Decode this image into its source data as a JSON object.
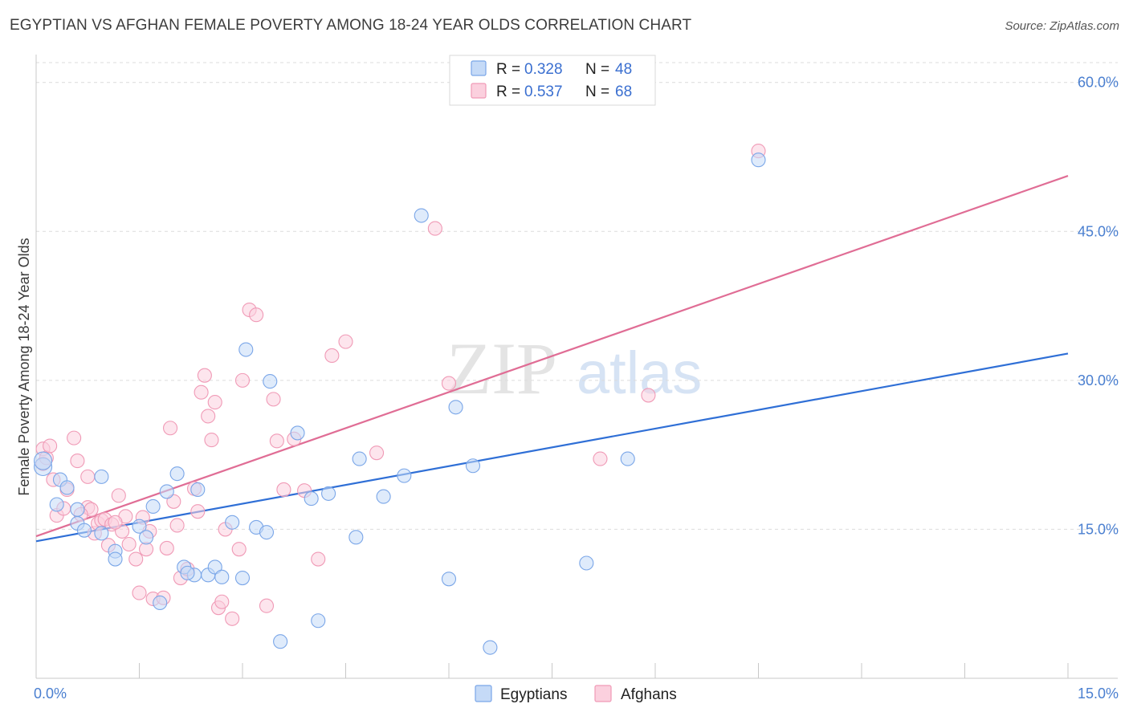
{
  "title": "EGYPTIAN VS AFGHAN FEMALE POVERTY AMONG 18-24 YEAR OLDS CORRELATION CHART",
  "source": "Source: ZipAtlas.com",
  "watermark": {
    "zip": "ZIP",
    "atlas": "atlas"
  },
  "legend": {
    "rows": [
      {
        "r_label": "R =",
        "r_value": "0.328",
        "n_label": "N =",
        "n_value": "48"
      },
      {
        "r_label": "R =",
        "r_value": "0.537",
        "n_label": "N =",
        "n_value": "68"
      }
    ]
  },
  "bottom_legend": [
    "Egyptians",
    "Afghans"
  ],
  "chart_data": {
    "type": "scatter",
    "title": "EGYPTIAN VS AFGHAN FEMALE POVERTY AMONG 18-24 YEAR OLDS CORRELATION CHART",
    "xlabel": "",
    "ylabel": "Female Poverty Among 18-24 Year Olds",
    "xlim": [
      0,
      15
    ],
    "ylim": [
      0,
      62
    ],
    "x_tick_labels": [
      "0.0%",
      "15.0%"
    ],
    "y_ticks": [
      15,
      30,
      45,
      60
    ],
    "y_tick_labels": [
      "15.0%",
      "30.0%",
      "45.0%",
      "60.0%"
    ],
    "grid": true,
    "legend_position": "top-center",
    "colors": {
      "egyptians": "#6d9fe6",
      "afghans": "#f08fb0",
      "egyptians_line": "#2f6fd6",
      "afghans_line": "#e06d95"
    },
    "series": [
      {
        "name": "Egyptians",
        "R": 0.328,
        "N": 48,
        "trend": [
          [
            0,
            13.8
          ],
          [
            15,
            32.7
          ]
        ],
        "points": [
          [
            0.1,
            21.3
          ],
          [
            0.1,
            21.9
          ],
          [
            0.35,
            20.0
          ],
          [
            0.45,
            19.2
          ],
          [
            0.3,
            17.5
          ],
          [
            0.6,
            17.0
          ],
          [
            0.95,
            20.3
          ],
          [
            0.6,
            15.6
          ],
          [
            0.7,
            14.9
          ],
          [
            0.95,
            14.6
          ],
          [
            1.15,
            12.8
          ],
          [
            1.15,
            12.0
          ],
          [
            1.5,
            15.3
          ],
          [
            1.6,
            14.2
          ],
          [
            1.7,
            17.3
          ],
          [
            1.9,
            18.8
          ],
          [
            2.05,
            20.6
          ],
          [
            1.8,
            7.6
          ],
          [
            2.15,
            11.2
          ],
          [
            2.3,
            10.4
          ],
          [
            2.35,
            19.0
          ],
          [
            2.5,
            10.4
          ],
          [
            2.6,
            11.2
          ],
          [
            2.7,
            10.2
          ],
          [
            2.85,
            15.7
          ],
          [
            3.0,
            10.1
          ],
          [
            3.05,
            33.1
          ],
          [
            3.2,
            15.2
          ],
          [
            3.35,
            14.7
          ],
          [
            3.4,
            29.9
          ],
          [
            3.55,
            3.7
          ],
          [
            3.8,
            24.7
          ],
          [
            4.0,
            18.1
          ],
          [
            4.1,
            5.8
          ],
          [
            4.25,
            18.6
          ],
          [
            4.65,
            14.2
          ],
          [
            4.7,
            22.1
          ],
          [
            5.05,
            18.3
          ],
          [
            5.35,
            20.4
          ],
          [
            5.6,
            46.6
          ],
          [
            6.0,
            10.0
          ],
          [
            6.1,
            27.3
          ],
          [
            6.35,
            21.4
          ],
          [
            6.6,
            3.1
          ],
          [
            8.0,
            11.6
          ],
          [
            8.6,
            22.1
          ],
          [
            10.5,
            52.2
          ],
          [
            2.2,
            10.6
          ]
        ]
      },
      {
        "name": "Afghans",
        "R": 0.537,
        "N": 68,
        "trend": [
          [
            0,
            14.3
          ],
          [
            15,
            50.6
          ]
        ],
        "points": [
          [
            0.1,
            23.1
          ],
          [
            0.1,
            21.6
          ],
          [
            0.15,
            22.2
          ],
          [
            0.25,
            20.0
          ],
          [
            0.3,
            16.4
          ],
          [
            0.45,
            19.0
          ],
          [
            0.55,
            24.2
          ],
          [
            0.6,
            21.9
          ],
          [
            0.75,
            20.3
          ],
          [
            0.75,
            17.2
          ],
          [
            0.8,
            17.0
          ],
          [
            0.85,
            14.6
          ],
          [
            0.9,
            15.6
          ],
          [
            0.95,
            15.9
          ],
          [
            1.0,
            16.0
          ],
          [
            1.1,
            15.5
          ],
          [
            1.2,
            18.4
          ],
          [
            1.25,
            14.8
          ],
          [
            1.3,
            16.3
          ],
          [
            1.35,
            13.5
          ],
          [
            1.45,
            12.0
          ],
          [
            1.5,
            8.6
          ],
          [
            1.6,
            13.0
          ],
          [
            1.7,
            8.0
          ],
          [
            1.85,
            8.1
          ],
          [
            1.9,
            13.1
          ],
          [
            1.95,
            25.2
          ],
          [
            2.05,
            15.4
          ],
          [
            2.1,
            10.1
          ],
          [
            2.2,
            11.0
          ],
          [
            2.3,
            19.1
          ],
          [
            2.35,
            16.8
          ],
          [
            2.4,
            28.8
          ],
          [
            2.45,
            30.5
          ],
          [
            2.5,
            26.4
          ],
          [
            2.55,
            24.0
          ],
          [
            2.6,
            27.8
          ],
          [
            2.65,
            7.1
          ],
          [
            2.7,
            7.7
          ],
          [
            2.85,
            6.0
          ],
          [
            2.95,
            13.0
          ],
          [
            3.0,
            30.0
          ],
          [
            3.1,
            37.1
          ],
          [
            3.2,
            36.6
          ],
          [
            3.35,
            7.3
          ],
          [
            3.45,
            28.1
          ],
          [
            3.5,
            23.9
          ],
          [
            3.6,
            19.0
          ],
          [
            3.75,
            24.1
          ],
          [
            3.9,
            18.9
          ],
          [
            4.1,
            12.0
          ],
          [
            4.3,
            32.5
          ],
          [
            4.5,
            33.9
          ],
          [
            4.95,
            22.7
          ],
          [
            5.8,
            45.3
          ],
          [
            6.0,
            29.7
          ],
          [
            8.2,
            22.1
          ],
          [
            8.9,
            28.5
          ],
          [
            10.5,
            53.1
          ],
          [
            0.2,
            23.4
          ],
          [
            0.4,
            17.1
          ],
          [
            1.05,
            13.4
          ],
          [
            1.55,
            16.2
          ],
          [
            1.65,
            14.8
          ],
          [
            2.0,
            17.8
          ],
          [
            0.65,
            16.5
          ],
          [
            1.15,
            15.7
          ],
          [
            2.75,
            15.0
          ]
        ]
      }
    ]
  }
}
